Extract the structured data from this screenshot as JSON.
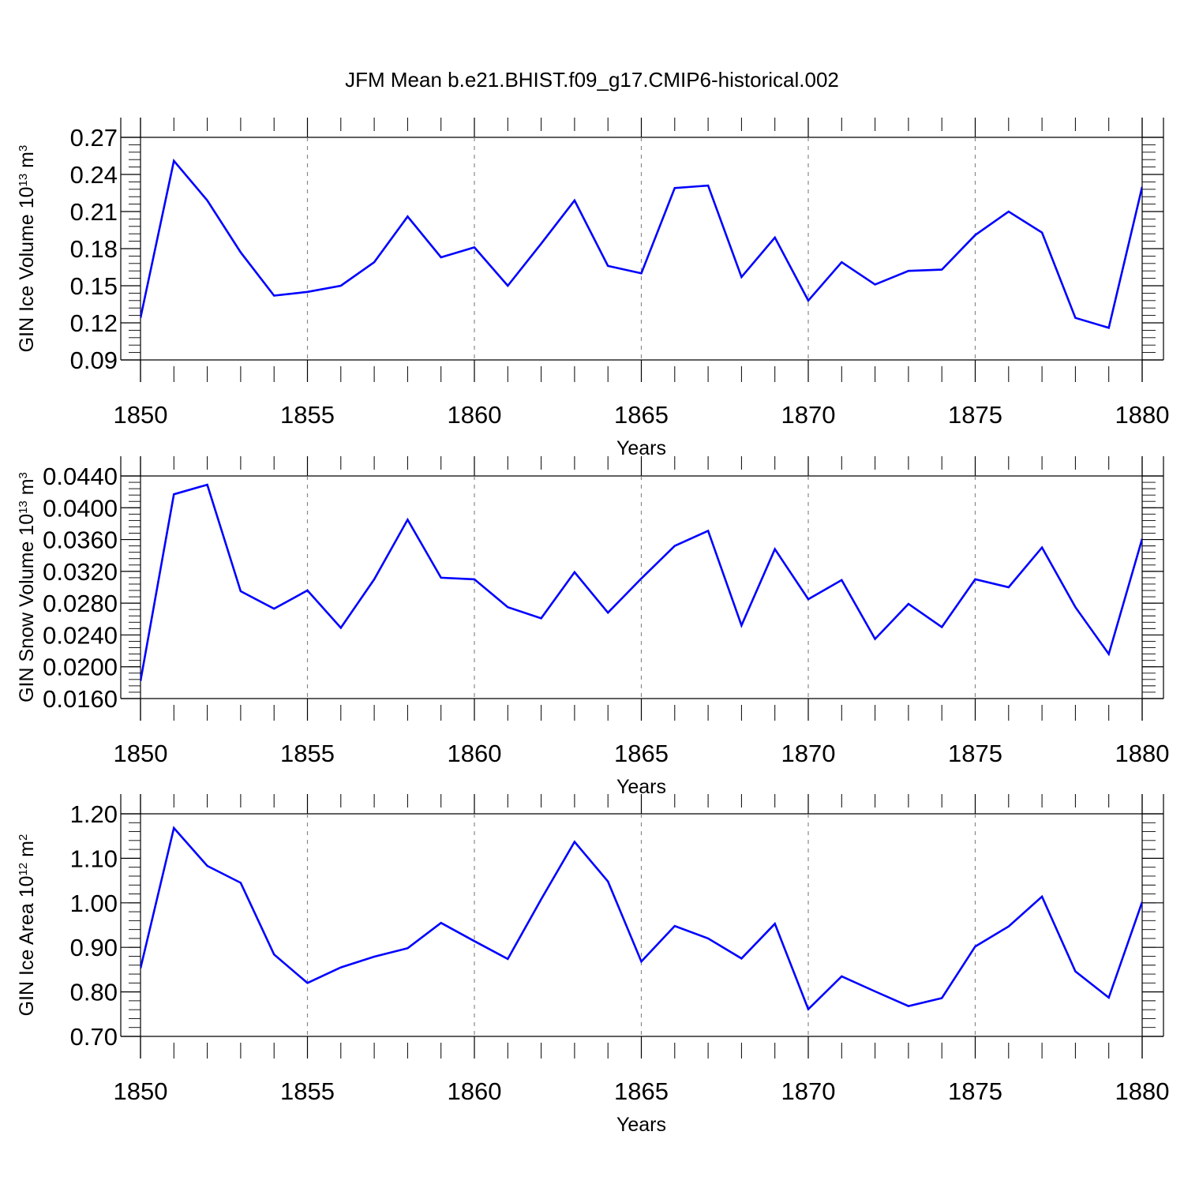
{
  "figure": {
    "title": "JFM Mean b.e21.BHIST.f09_g17.CMIP6-historical.002",
    "line_color": "#0000ff",
    "grid_color": "#888888"
  },
  "chart_data": [
    {
      "type": "line",
      "title": "",
      "xlabel": "Years",
      "ylabel": {
        "prefix": "GIN Ice Volume 10",
        "exp1": "13",
        "mid": " m",
        "exp2": "3"
      },
      "xlim": [
        1850,
        1880
      ],
      "ylim": [
        0.09,
        0.27
      ],
      "xticks": [
        "1850",
        "1855",
        "1860",
        "1865",
        "1870",
        "1875",
        "1880"
      ],
      "yticks": [
        "0.09",
        "0.12",
        "0.15",
        "0.18",
        "0.21",
        "0.24",
        "0.27"
      ],
      "grid": "x-dashed",
      "x": [
        1850,
        1851,
        1852,
        1853,
        1854,
        1855,
        1856,
        1857,
        1858,
        1859,
        1860,
        1861,
        1862,
        1863,
        1864,
        1865,
        1866,
        1867,
        1868,
        1869,
        1870,
        1871,
        1872,
        1873,
        1874,
        1875,
        1876,
        1877,
        1878,
        1879,
        1880
      ],
      "series": [
        {
          "values": [
            0.124,
            0.251,
            0.219,
            0.177,
            0.142,
            0.145,
            0.15,
            0.169,
            0.206,
            0.173,
            0.181,
            0.15,
            0.184,
            0.219,
            0.166,
            0.16,
            0.229,
            0.231,
            0.157,
            0.189,
            0.138,
            0.169,
            0.151,
            0.162,
            0.163,
            0.191,
            0.21,
            0.193,
            0.124,
            0.116,
            0.23
          ]
        }
      ]
    },
    {
      "type": "line",
      "title": "",
      "xlabel": "Years",
      "ylabel": {
        "prefix": "GIN Snow Volume 10",
        "exp1": "13",
        "mid": " m",
        "exp2": "3"
      },
      "xlim": [
        1850,
        1880
      ],
      "ylim": [
        0.016,
        0.044
      ],
      "xticks": [
        "1850",
        "1855",
        "1860",
        "1865",
        "1870",
        "1875",
        "1880"
      ],
      "yticks": [
        "0.0160",
        "0.0200",
        "0.0240",
        "0.0280",
        "0.0320",
        "0.0360",
        "0.0400",
        "0.0440"
      ],
      "grid": "x-dashed",
      "x": [
        1850,
        1851,
        1852,
        1853,
        1854,
        1855,
        1856,
        1857,
        1858,
        1859,
        1860,
        1861,
        1862,
        1863,
        1864,
        1865,
        1866,
        1867,
        1868,
        1869,
        1870,
        1871,
        1872,
        1873,
        1874,
        1875,
        1876,
        1877,
        1878,
        1879,
        1880
      ],
      "series": [
        {
          "values": [
            0.0182,
            0.0417,
            0.0429,
            0.0295,
            0.0273,
            0.0296,
            0.0249,
            0.031,
            0.0385,
            0.0312,
            0.031,
            0.0275,
            0.0261,
            0.0319,
            0.0268,
            0.0311,
            0.0352,
            0.0371,
            0.0252,
            0.0348,
            0.0285,
            0.0309,
            0.0235,
            0.0279,
            0.025,
            0.031,
            0.03,
            0.035,
            0.0275,
            0.0216,
            0.0361
          ]
        }
      ]
    },
    {
      "type": "line",
      "title": "",
      "xlabel": "Years",
      "ylabel": {
        "prefix": "GIN Ice Area 10",
        "exp1": "12",
        "mid": " m",
        "exp2": "2"
      },
      "xlim": [
        1850,
        1880
      ],
      "ylim": [
        0.7,
        1.2
      ],
      "xticks": [
        "1850",
        "1855",
        "1860",
        "1865",
        "1870",
        "1875",
        "1880"
      ],
      "yticks": [
        "0.70",
        "0.80",
        "0.90",
        "1.00",
        "1.10",
        "1.20"
      ],
      "grid": "x-dashed",
      "x": [
        1850,
        1851,
        1852,
        1853,
        1854,
        1855,
        1856,
        1857,
        1858,
        1859,
        1860,
        1861,
        1862,
        1863,
        1864,
        1865,
        1866,
        1867,
        1868,
        1869,
        1870,
        1871,
        1872,
        1873,
        1874,
        1875,
        1876,
        1877,
        1878,
        1879,
        1880
      ],
      "series": [
        {
          "values": [
            0.853,
            1.168,
            1.083,
            1.045,
            0.884,
            0.82,
            0.855,
            0.879,
            0.898,
            0.955,
            0.914,
            0.874,
            1.008,
            1.137,
            1.048,
            0.868,
            0.948,
            0.92,
            0.875,
            0.953,
            0.761,
            0.835,
            0.801,
            0.768,
            0.786,
            0.902,
            0.947,
            1.014,
            0.846,
            0.787,
            1.002
          ]
        }
      ]
    }
  ]
}
